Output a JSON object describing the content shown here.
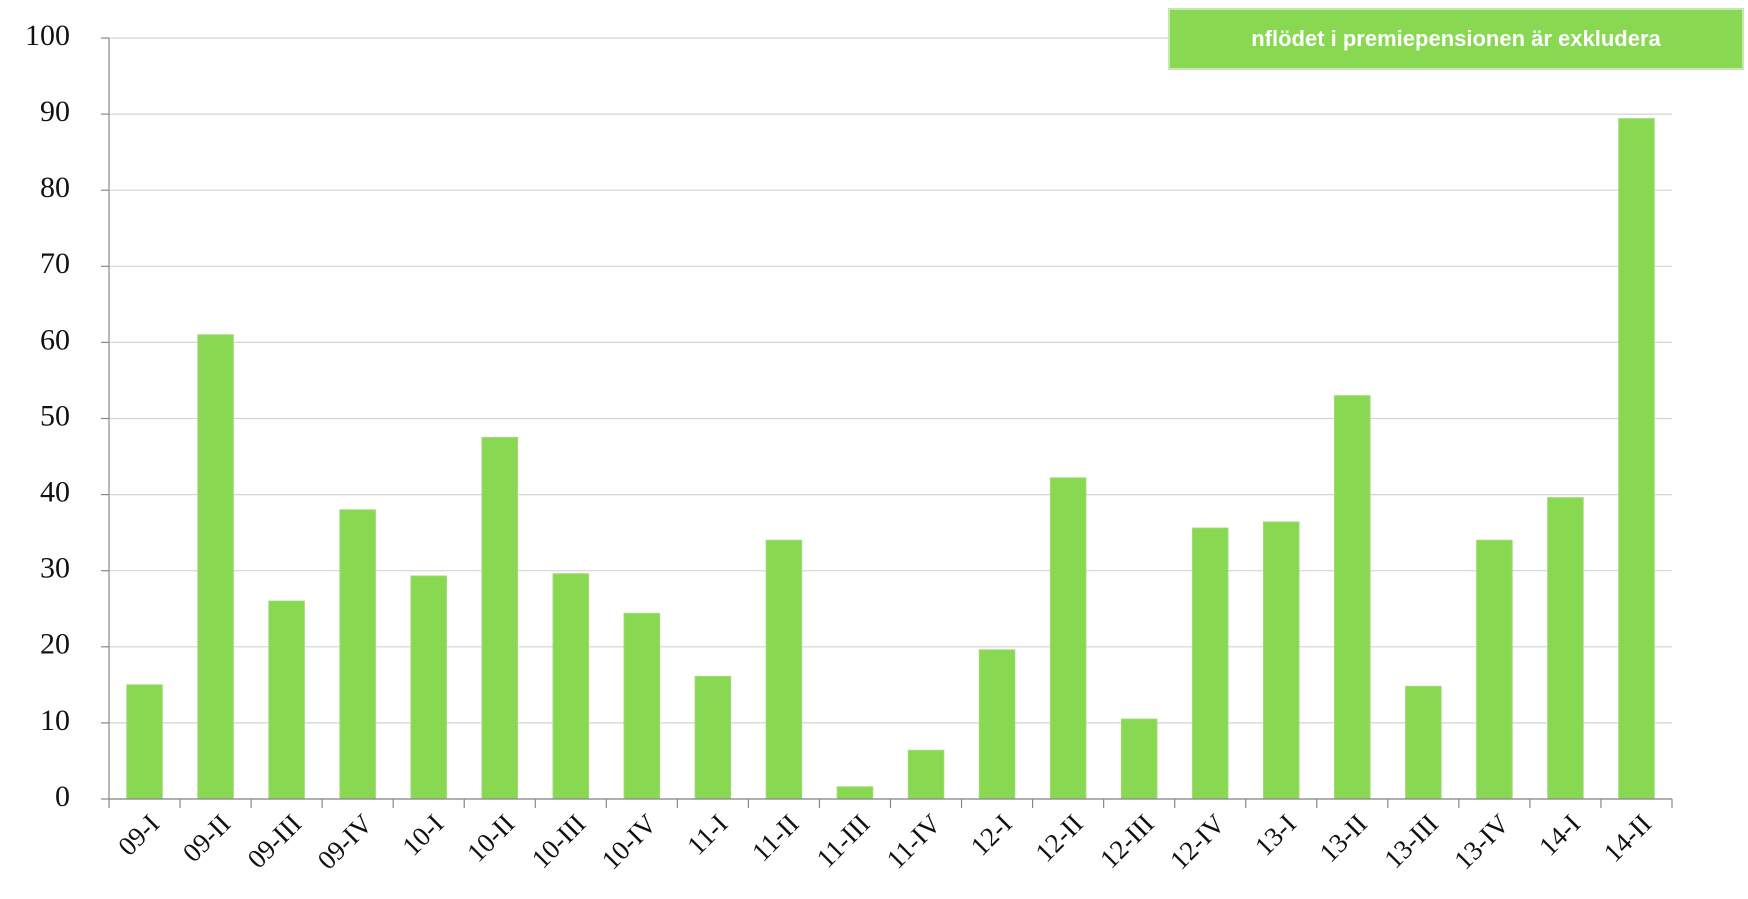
{
  "chart_data": {
    "type": "bar",
    "annotation": "nflödet i premiepensionen är exkludera",
    "categories": [
      "09-I",
      "09-II",
      "09-III",
      "09-IV",
      "10-I",
      "10-II",
      "10-III",
      "10-IV",
      "11-I",
      "11-II",
      "11-III",
      "11-IV",
      "12-I",
      "12-II",
      "12-III",
      "12-IV",
      "13-I",
      "13-II",
      "13-III",
      "13-IV",
      "14-I",
      "14-II"
    ],
    "values": [
      15,
      61,
      26,
      38,
      29.3,
      47.5,
      29.6,
      24.4,
      16.1,
      34,
      1.6,
      6.4,
      19.6,
      42.2,
      10.5,
      35.6,
      36.4,
      53,
      14.8,
      34,
      39.6,
      89.4
    ],
    "color": "#88d851",
    "ylim": [
      0,
      100
    ],
    "yticks": [
      0,
      10,
      20,
      30,
      40,
      50,
      60,
      70,
      80,
      90,
      100
    ],
    "grid": true
  }
}
